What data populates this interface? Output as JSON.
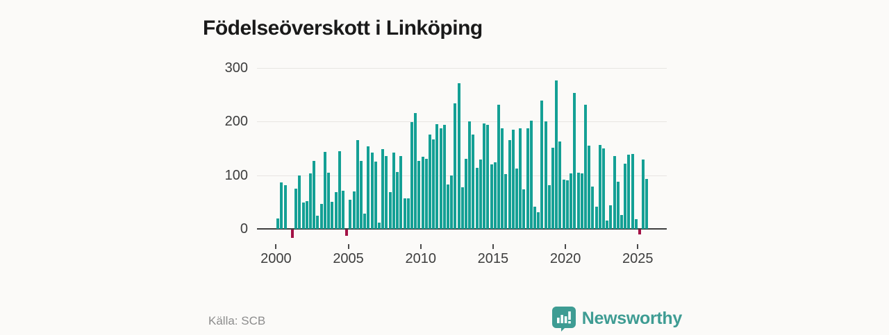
{
  "header": {
    "title": "Födelseöverskott i Linköping"
  },
  "footer": {
    "source_label": "Källa: SCB",
    "brand_name": "Newsworthy"
  },
  "colors": {
    "background": "#fbfaf8",
    "bar_positive": "#14a095",
    "bar_negative": "#a31246",
    "axis_line": "#3e3e3e",
    "gridline": "#e7e5e2",
    "tick_text": "#3d3d3d",
    "title_text": "#1a1a1a",
    "source_text": "#8c8c8c",
    "brand_teal": "#3e9c93"
  },
  "chart_data": {
    "type": "bar",
    "title": "Födelseöverskott i Linköping",
    "xlabel": "",
    "ylabel": "",
    "source": "Källa: SCB",
    "grid": "horizontal",
    "ylim": [
      -30,
      310
    ],
    "yticks": [
      0,
      100,
      200,
      300
    ],
    "xtick_years": [
      2000,
      2005,
      2010,
      2015,
      2020,
      2025
    ],
    "frequency": "quarterly",
    "start_period": "2000-Q1",
    "end_period": "2025-Q3",
    "note": "values are quarterly birth surplus; index 0 = 2000-Q1; zero value = no visible bar",
    "values": [
      19,
      86,
      82,
      0,
      -15,
      75,
      99,
      49,
      52,
      104,
      127,
      24,
      47,
      144,
      105,
      50,
      69,
      145,
      71,
      -12,
      54,
      70,
      166,
      127,
      29,
      154,
      142,
      125,
      11,
      149,
      136,
      69,
      142,
      106,
      136,
      57,
      57,
      199,
      216,
      127,
      134,
      131,
      176,
      167,
      195,
      187,
      194,
      83,
      100,
      234,
      271,
      78,
      130,
      200,
      176,
      114,
      129,
      196,
      194,
      120,
      124,
      232,
      188,
      102,
      165,
      185,
      113,
      187,
      74,
      187,
      202,
      41,
      31,
      239,
      201,
      82,
      151,
      277,
      163,
      92,
      91,
      103,
      254,
      105,
      104,
      231,
      155,
      79,
      41,
      157,
      150,
      15,
      44,
      136,
      88,
      26,
      122,
      138,
      140,
      18,
      -9,
      129,
      93
    ]
  },
  "icons": {
    "brand_logo": "newsworthy-bar-chart-pin-icon"
  }
}
